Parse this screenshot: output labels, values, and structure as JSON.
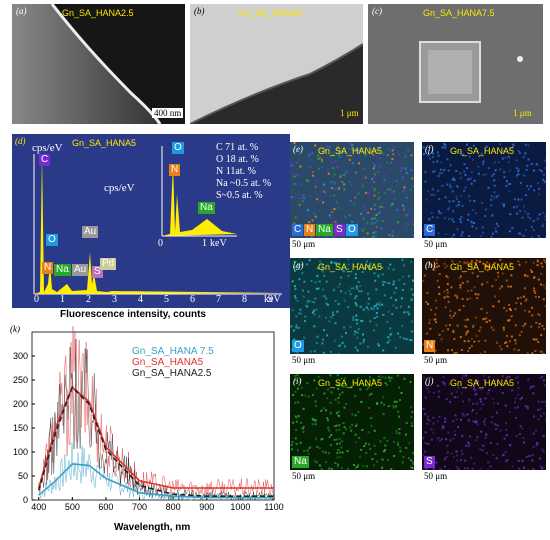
{
  "sem": {
    "a": {
      "label": "(a)",
      "title": "Gn_SA_HANA2.5",
      "scale": "400 nm"
    },
    "b": {
      "label": "(b)",
      "title": "Gn_SA_HANA5",
      "scale": "1 μm"
    },
    "c": {
      "label": "(c)",
      "title": "Gn_SA_HANA7.5",
      "scale": "1 μm"
    }
  },
  "eds": {
    "label": "(d)",
    "title": "Gn_SA_HANA5",
    "ylabel": "cps/eV",
    "inset_ylabel": "cps/eV",
    "xlabel": "Fluorescence intensity, counts",
    "xticks": [
      "0",
      "1",
      "2",
      "3",
      "4",
      "5",
      "6",
      "7",
      "8",
      "9"
    ],
    "xunit": "keV",
    "inset_xticks": [
      "0",
      "1"
    ],
    "inset_xunit": "keV",
    "composition": [
      "C 71 at. %",
      "O 18 at. %",
      "N 11at. %",
      "Na ~0.5 at. %",
      "S~0.5 at. %"
    ],
    "peaks": [
      "C",
      "O",
      "N",
      "Na",
      "Au",
      "Au",
      "S",
      "Pd"
    ],
    "inset_peaks": [
      "O",
      "N",
      "Na"
    ]
  },
  "maps": {
    "e": {
      "label": "(e)",
      "title": "Gn_SA_HANA5",
      "scale": "50 μm",
      "chips": [
        "C",
        "N",
        "Na",
        "S",
        "O"
      ]
    },
    "f": {
      "label": "(f)",
      "title": "Gn_SA_HANA5",
      "scale": "50 μm",
      "chips": [
        "C"
      ]
    },
    "g": {
      "label": "(g)",
      "title": "Gn_SA_HANA5",
      "scale": "50 μm",
      "chips": [
        "O"
      ]
    },
    "h": {
      "label": "(h)",
      "title": "Gn_SA_HANA5",
      "scale": "50 μm",
      "chips": [
        "N"
      ]
    },
    "i": {
      "label": "(i)",
      "title": "Gn_SA_HANA5",
      "scale": "50 μm",
      "chips": [
        "Na"
      ]
    },
    "j": {
      "label": "(j)",
      "title": "Gn_SA_HANA5",
      "scale": "50 μm",
      "chips": [
        "S"
      ]
    }
  },
  "chip_colors": {
    "C": "#2a6cd4",
    "N": "#e8801a",
    "Na": "#2aa72a",
    "S": "#7a2ad0",
    "O": "#1e9be0"
  },
  "chart_data": {
    "type": "line",
    "label": "(k)",
    "xlabel": "Wavelength, nm",
    "ylabel": "",
    "xlim": [
      380,
      1100
    ],
    "ylim": [
      0,
      350
    ],
    "xticks": [
      400,
      500,
      600,
      700,
      800,
      900,
      1000,
      1100
    ],
    "yticks": [
      0,
      50,
      100,
      150,
      200,
      250,
      300
    ],
    "series": [
      {
        "name": "Gn_SA_HANA 7.5",
        "color": "#3aa0c8",
        "x": [
          400,
          450,
          500,
          550,
          600,
          700,
          800,
          900,
          1000,
          1100
        ],
        "values": [
          10,
          40,
          75,
          72,
          45,
          15,
          8,
          5,
          5,
          5
        ]
      },
      {
        "name": "Gn_SA_HANA5",
        "color": "#e03030",
        "x": [
          400,
          450,
          500,
          550,
          600,
          700,
          800,
          900,
          1000,
          1100
        ],
        "values": [
          25,
          150,
          235,
          205,
          110,
          40,
          25,
          25,
          25,
          25
        ]
      },
      {
        "name": "Gn_SA_HANA2.5",
        "color": "#222222",
        "x": [
          400,
          450,
          500,
          550,
          600,
          700,
          800,
          900,
          1000,
          1100
        ],
        "values": [
          20,
          140,
          235,
          200,
          105,
          30,
          12,
          8,
          8,
          8
        ]
      }
    ]
  }
}
